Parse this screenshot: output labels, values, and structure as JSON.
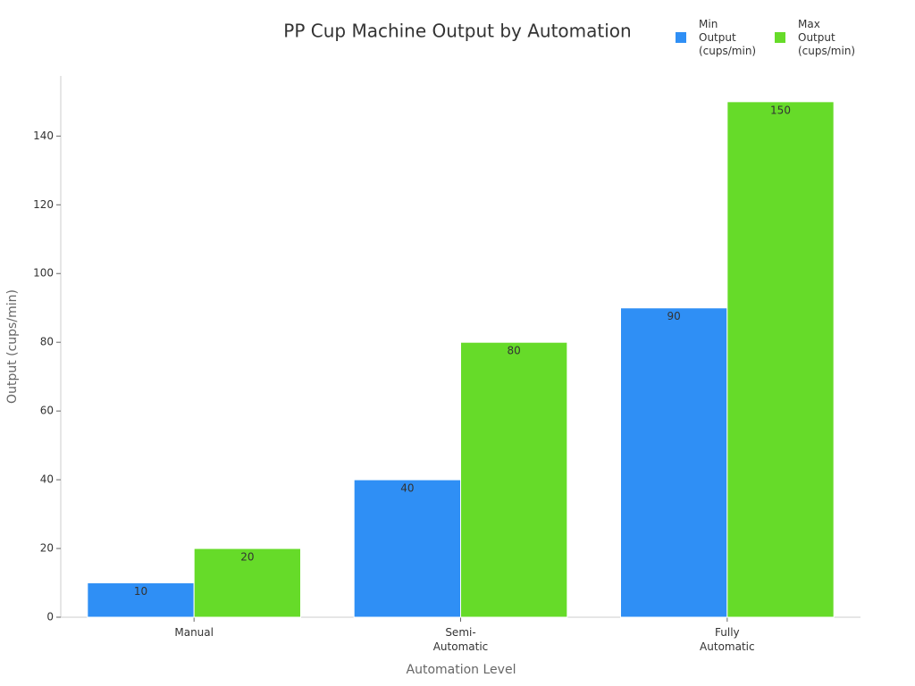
{
  "chart_data": {
    "type": "bar",
    "title": "PP Cup Machine Output by Automation",
    "x_label": "Automation Level",
    "y_label": "Output (cups/min)",
    "categories": [
      "Manual",
      "Semi-Automatic",
      "Fully Automatic"
    ],
    "series": [
      {
        "name": "Min Output (cups/min)",
        "color": "#2f8ff5",
        "values": [
          10,
          40,
          90
        ]
      },
      {
        "name": "Max Output (cups/min)",
        "color": "#66db29",
        "values": [
          20,
          80,
          150
        ]
      }
    ],
    "ylim": [
      0,
      157.5
    ],
    "yticks": [
      0,
      20,
      40,
      60,
      80,
      100,
      120,
      140
    ],
    "grid": false,
    "legend": "top-right"
  }
}
